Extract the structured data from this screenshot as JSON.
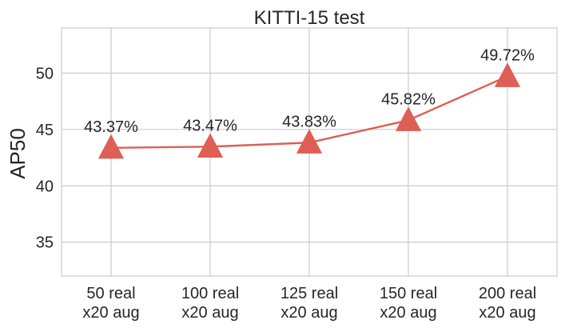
{
  "chart_data": {
    "type": "line",
    "title": "KITTI-15 test",
    "ylabel": "AP50",
    "xlabel": "",
    "categories": [
      "50 real\nx20 aug",
      "100 real\nx20 aug",
      "125 real\nx20 aug",
      "150 real\nx20 aug",
      "200 real\nx20 aug"
    ],
    "series": [
      {
        "values": [
          43.37,
          43.47,
          43.83,
          45.82,
          49.72
        ],
        "data_labels": [
          "43.37%",
          "43.47%",
          "43.83%",
          "45.82%",
          "49.72%"
        ],
        "color": "#dd5f55",
        "marker": "triangle-up"
      }
    ],
    "ylim": [
      32,
      54
    ],
    "yticks": [
      35,
      40,
      45,
      50
    ],
    "grid": true,
    "legend": "none"
  }
}
